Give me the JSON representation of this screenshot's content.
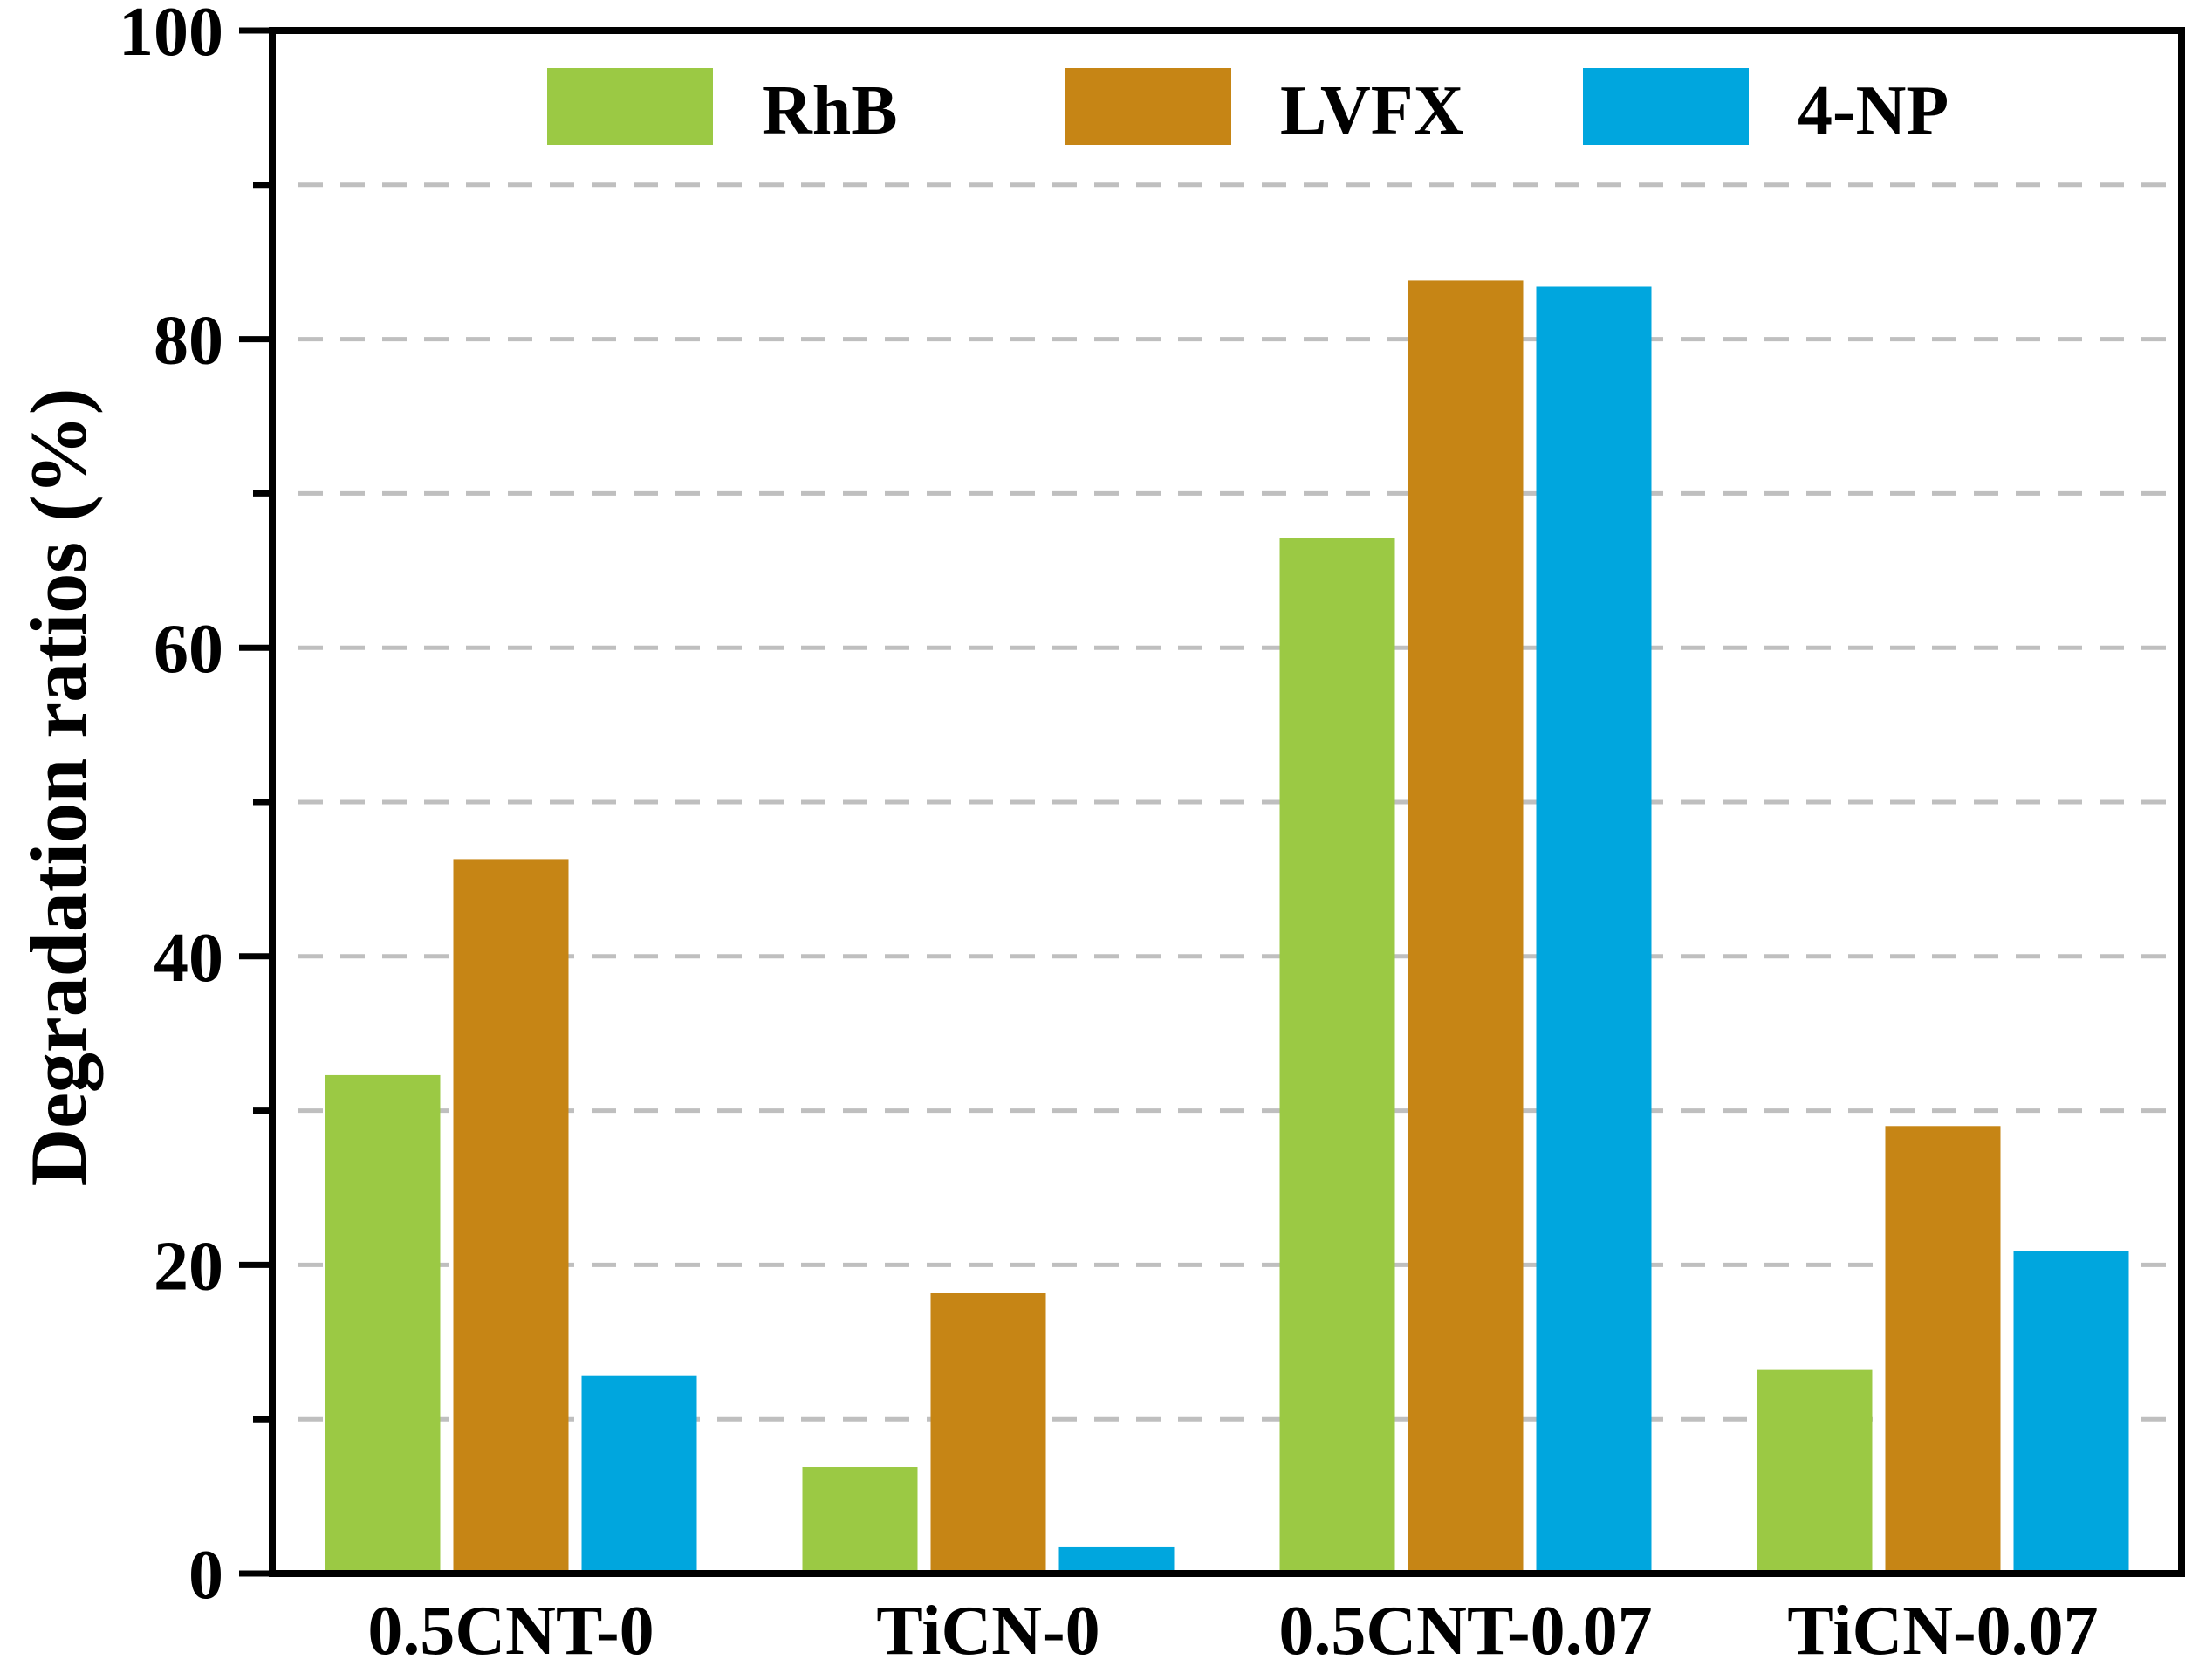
{
  "chart_data": {
    "type": "bar",
    "categories": [
      "0.5CNT-0",
      "TiCN-0",
      "0.5CNT-0.07",
      "TiCN-0.07"
    ],
    "series": [
      {
        "name": "RhB",
        "color": "#9BC944",
        "values": [
          32.3,
          6.9,
          67.1,
          13.2
        ]
      },
      {
        "name": "LVFX",
        "color": "#C68515",
        "values": [
          46.3,
          18.2,
          83.8,
          29.0
        ]
      },
      {
        "name": "4-NP",
        "color": "#00A6DE",
        "values": [
          12.8,
          1.7,
          83.4,
          20.9
        ]
      }
    ],
    "title": "",
    "xlabel": "",
    "ylabel": "Degradation ratios (%)",
    "ylim": [
      0,
      100
    ],
    "yticks": [
      0,
      20,
      40,
      60,
      80,
      100
    ],
    "ytick_labels": [
      "0",
      "20",
      "40",
      "60",
      "80",
      "100"
    ],
    "grid": "horizontal dashed at every 10",
    "grid_color": "#BFBFBF",
    "legend": "top, horizontal, inside plot"
  }
}
